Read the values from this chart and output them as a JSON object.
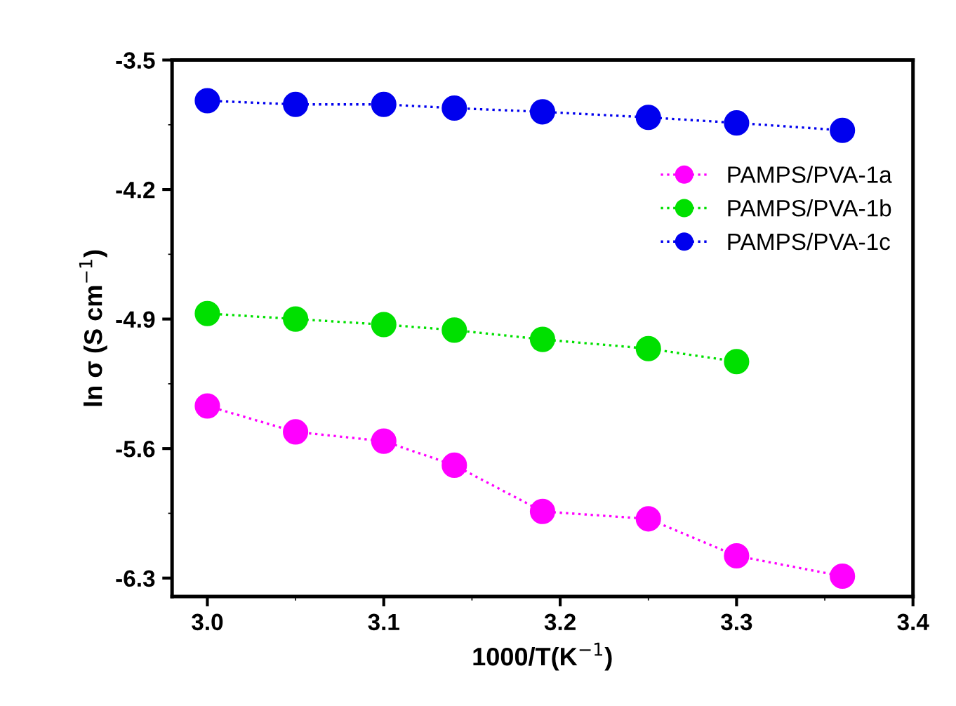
{
  "chart_data": {
    "type": "line",
    "xlabel": "1000/T(K$^{−1}$)",
    "ylabel": "ln σ (S cm$^{−1}$)",
    "xlim": [
      2.98,
      3.4
    ],
    "xticks": [
      {
        "value": 3.0,
        "label": "3.0"
      },
      {
        "value": 3.1,
        "label": "3.1"
      },
      {
        "value": 3.2,
        "label": "3.2"
      },
      {
        "value": 3.3,
        "label": "3.3"
      },
      {
        "value": 3.4,
        "label": "3.4"
      }
    ],
    "ylim": [
      -6.4,
      -3.5
    ],
    "yticks": [
      -3.5,
      -4.2,
      -4.9,
      -5.6,
      -6.3
    ],
    "marker": "circle",
    "line_style": "dotted",
    "grid": false,
    "legend": "right",
    "series": [
      {
        "name": "PAMPS/PVA-1a",
        "color": "#ff00ff",
        "x": [
          3.0,
          3.05,
          3.1,
          3.14,
          3.19,
          3.25,
          3.3,
          3.36
        ],
        "values": [
          -5.37,
          -5.51,
          -5.56,
          -5.69,
          -5.94,
          -5.98,
          -6.18,
          -6.29
        ]
      },
      {
        "name": "PAMPS/PVA-1b",
        "color": "#00e000",
        "x": [
          3.0,
          3.05,
          3.1,
          3.14,
          3.19,
          3.25,
          3.3
        ],
        "values": [
          -4.87,
          -4.9,
          -4.93,
          -4.96,
          -5.01,
          -5.06,
          -5.13
        ]
      },
      {
        "name": "PAMPS/PVA-1c",
        "color": "#0000ee",
        "x": [
          3.0,
          3.05,
          3.1,
          3.14,
          3.19,
          3.25,
          3.3,
          3.36
        ],
        "values": [
          -3.72,
          -3.74,
          -3.74,
          -3.76,
          -3.78,
          -3.81,
          -3.84,
          -3.88
        ]
      }
    ]
  }
}
